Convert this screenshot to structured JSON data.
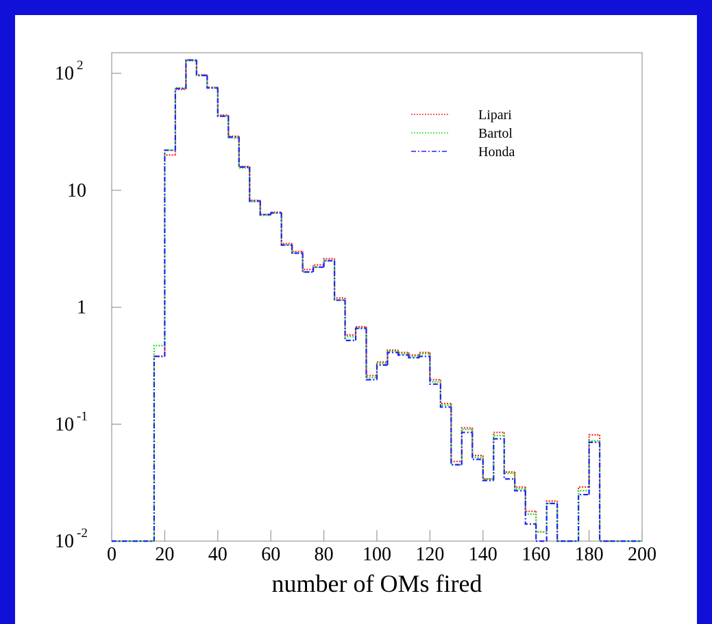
{
  "chart_data": {
    "type": "histogram",
    "x_label": "number of OMs fired",
    "bins": [
      0,
      4,
      8,
      12,
      16,
      20,
      24,
      28,
      32,
      36,
      40,
      44,
      48,
      52,
      56,
      60,
      64,
      68,
      72,
      76,
      80,
      84,
      88,
      92,
      96,
      100,
      104,
      108,
      112,
      116,
      120,
      124,
      128,
      132,
      136,
      140,
      144,
      148,
      152,
      156,
      160,
      164,
      168,
      172,
      176,
      180,
      184,
      188,
      192,
      196,
      200
    ],
    "series": [
      {
        "name": "Lipari",
        "color": "#ff2020",
        "dash": "dotted",
        "values": [
          null,
          null,
          null,
          null,
          0.38,
          20,
          73,
          130,
          97,
          76,
          44,
          29,
          16,
          8.2,
          6.2,
          6.5,
          3.5,
          3.0,
          2.1,
          2.3,
          2.6,
          1.2,
          0.58,
          0.68,
          0.26,
          0.34,
          0.43,
          0.41,
          0.39,
          0.41,
          0.24,
          0.15,
          0.048,
          0.093,
          0.054,
          0.034,
          0.085,
          0.039,
          0.029,
          0.018,
          0.012,
          0.022,
          null,
          null,
          0.029,
          0.081,
          null,
          null,
          null,
          null
        ]
      },
      {
        "name": "Bartol",
        "color": "#20e020",
        "dash": "dotted",
        "values": [
          null,
          null,
          null,
          null,
          0.47,
          22,
          75,
          128,
          96,
          75,
          43,
          28,
          15.5,
          8.0,
          6.1,
          6.4,
          3.4,
          2.9,
          2.0,
          2.2,
          2.5,
          1.15,
          0.56,
          0.66,
          0.25,
          0.33,
          0.42,
          0.4,
          0.38,
          0.4,
          0.23,
          0.145,
          0.045,
          0.09,
          0.052,
          0.034,
          0.08,
          0.038,
          0.028,
          0.017,
          0.012,
          0.021,
          null,
          null,
          0.027,
          0.072,
          null,
          null,
          null,
          null
        ]
      },
      {
        "name": "Honda",
        "color": "#2020ff",
        "dash": "dashdot",
        "values": [
          null,
          null,
          null,
          null,
          0.38,
          22,
          74,
          130,
          96,
          75,
          43,
          28.5,
          15.8,
          8.1,
          6.2,
          6.4,
          3.4,
          2.9,
          2.0,
          2.2,
          2.5,
          1.15,
          0.52,
          0.66,
          0.24,
          0.32,
          0.41,
          0.39,
          0.37,
          0.38,
          0.22,
          0.14,
          0.045,
          0.085,
          0.05,
          0.033,
          0.075,
          0.034,
          0.027,
          0.014,
          null,
          0.021,
          null,
          null,
          0.025,
          0.07,
          null,
          null,
          null,
          null
        ]
      }
    ],
    "xlim": [
      0,
      200
    ],
    "xticks": [
      0,
      20,
      40,
      60,
      80,
      100,
      120,
      140,
      160,
      180,
      200
    ],
    "ylim": [
      0.01,
      150
    ],
    "yscale": "log",
    "yticks": [
      {
        "value": 0.01,
        "label": "10",
        "sup": "-2"
      },
      {
        "value": 0.1,
        "label": "10",
        "sup": "-1"
      },
      1,
      10,
      {
        "value": 100,
        "label": "10",
        "sup": "2"
      }
    ],
    "legend": "upper right"
  }
}
